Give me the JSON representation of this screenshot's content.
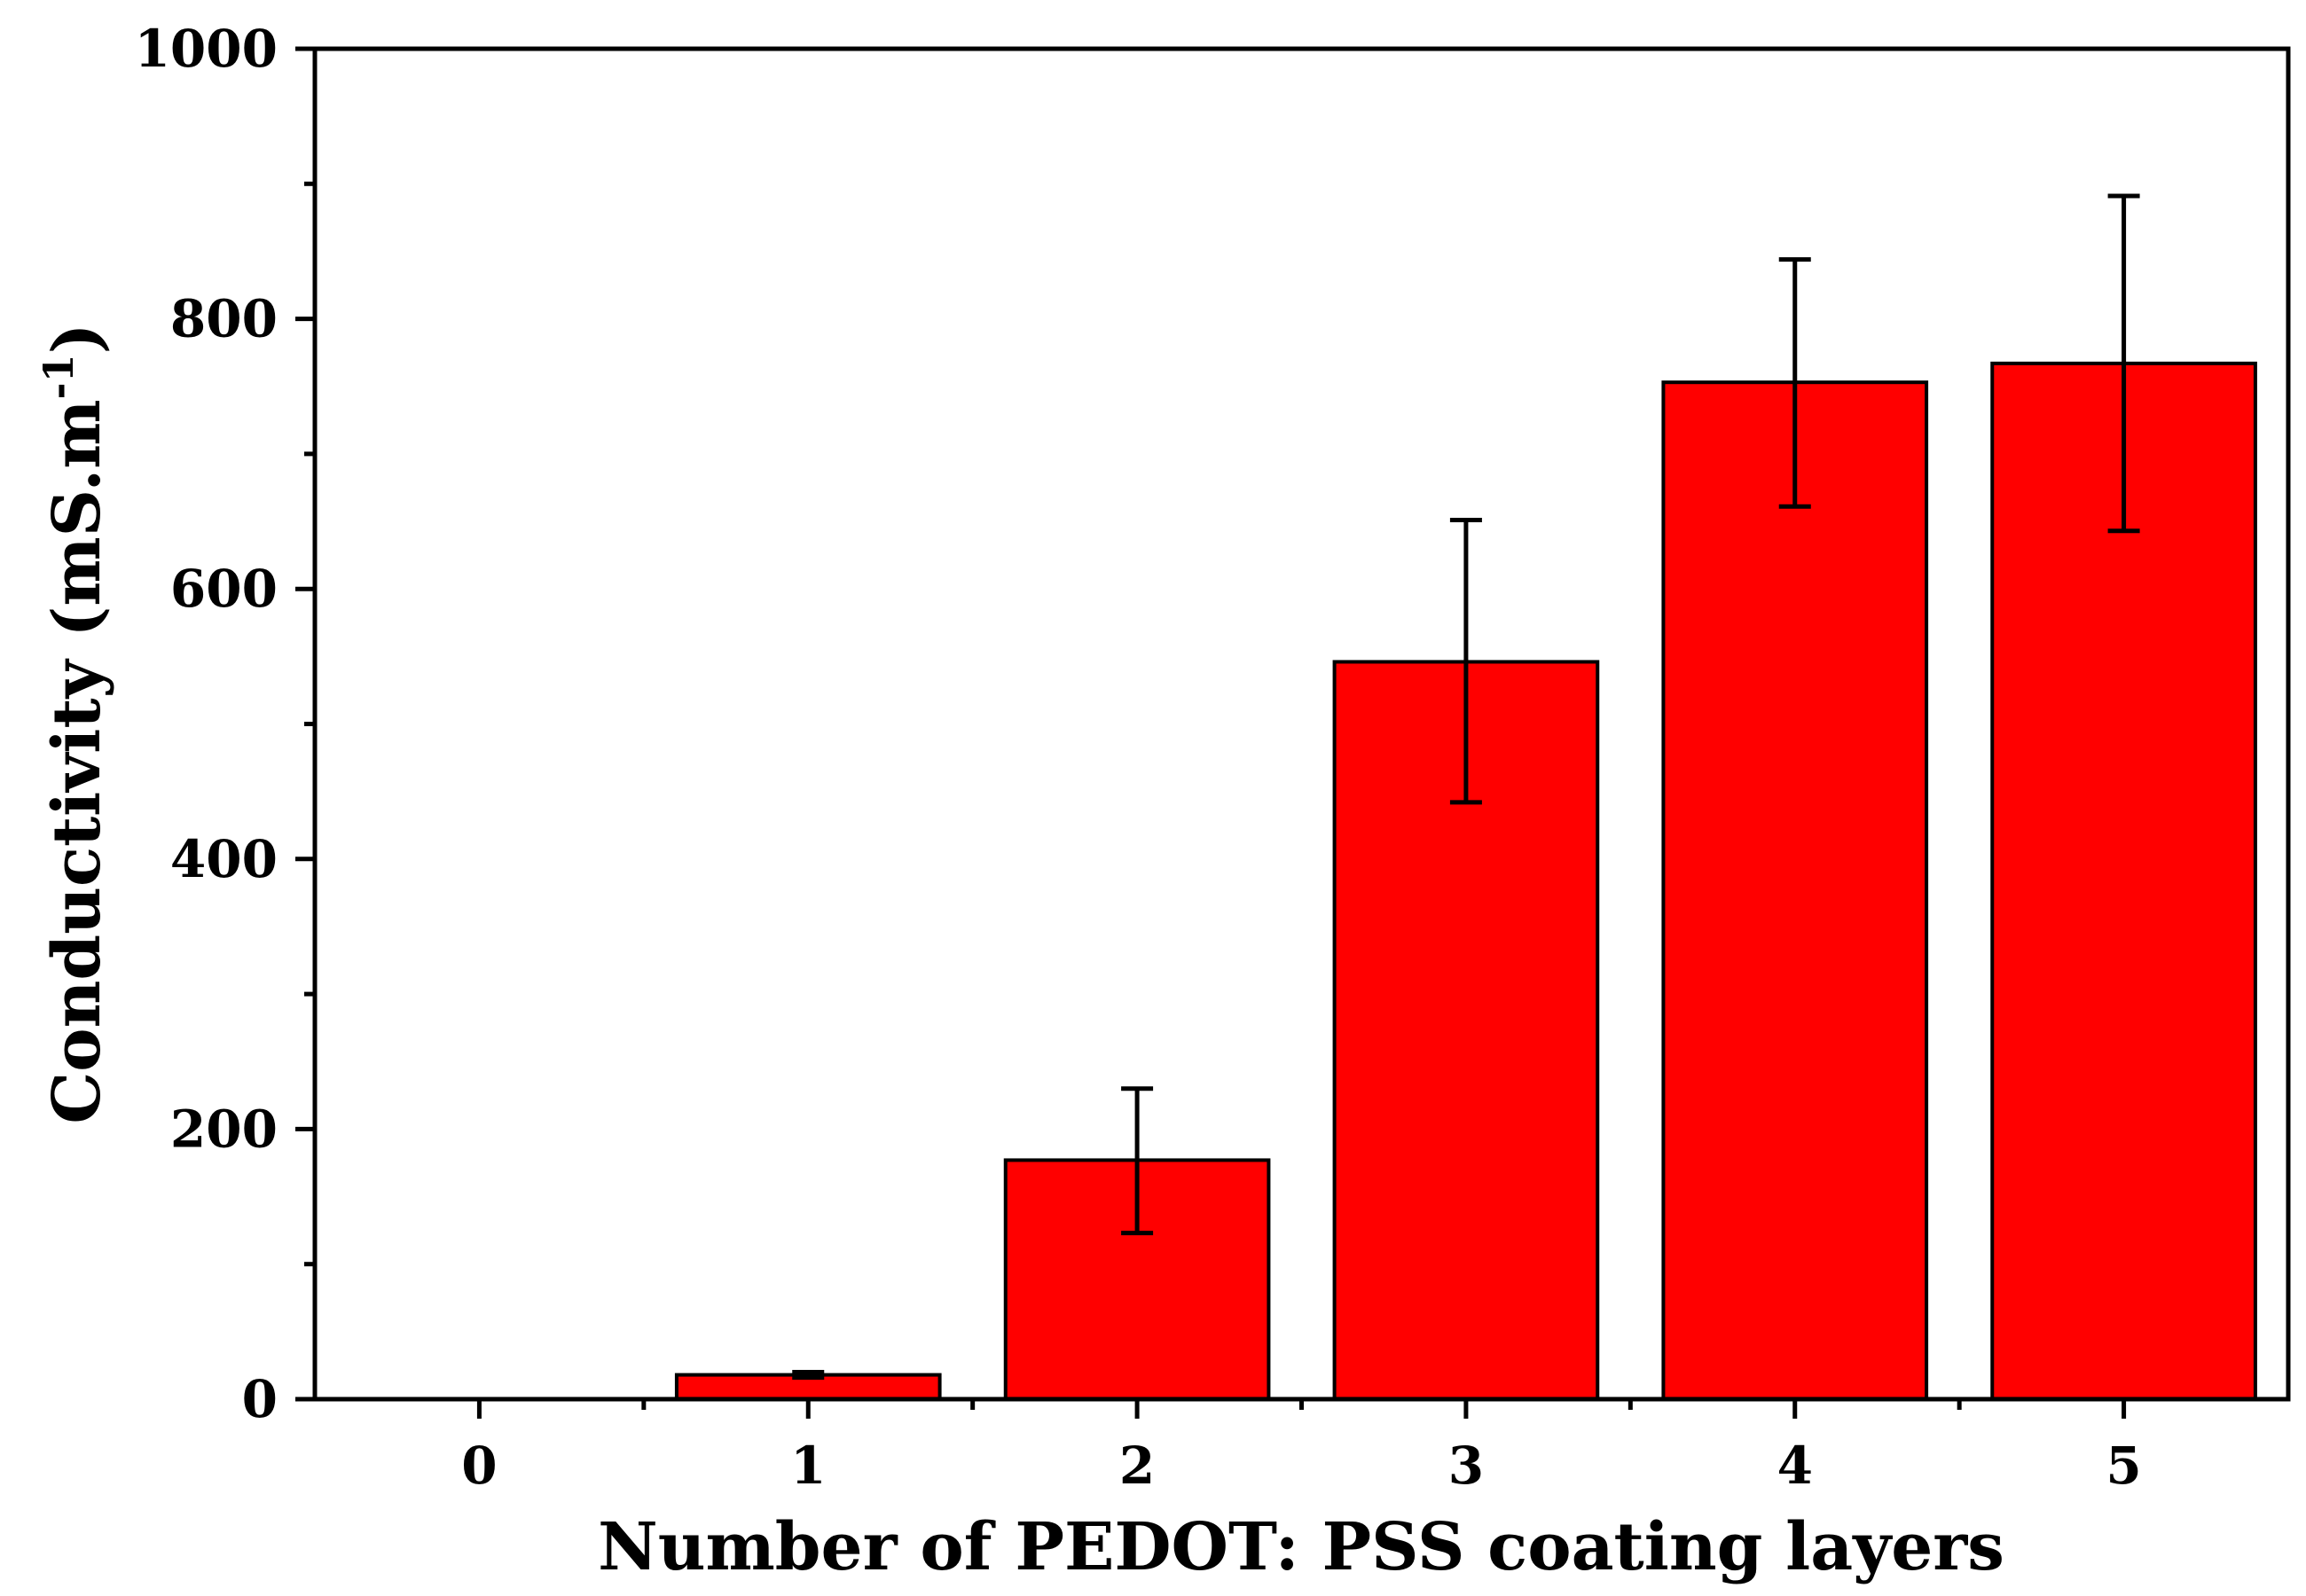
{
  "chart_data": {
    "type": "bar",
    "title": "",
    "xlabel": "Number of PEDOT: PSS coating layers",
    "ylabel": {
      "main": "Conductivity (mS.m",
      "superscript": "-1",
      "close": ")"
    },
    "categories": [
      "0",
      "1",
      "2",
      "3",
      "4",
      "5"
    ],
    "values": [
      0,
      18,
      177,
      546,
      753,
      767
    ],
    "error_low": [
      0,
      16,
      123,
      442,
      661,
      643
    ],
    "error_high": [
      0,
      20,
      230,
      651,
      844,
      891
    ],
    "ylim": [
      0,
      1000
    ],
    "yticks": [
      "0",
      "200",
      "400",
      "600",
      "800",
      "1000"
    ],
    "yminor_step": 100,
    "grid": false,
    "legend": "none",
    "colors": {
      "bar": "#ff0000",
      "edge": "#000000"
    }
  }
}
